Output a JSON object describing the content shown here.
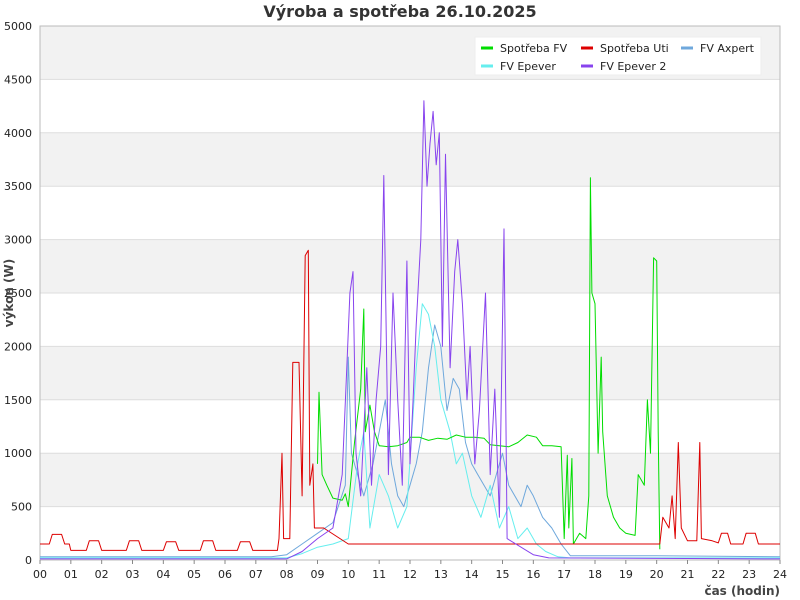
{
  "chart_data": {
    "type": "line",
    "title": "Výroba a spotřeba 26.10.2025",
    "xlabel": "čas (hodin)",
    "ylabel": "výkon (W)",
    "xlim": [
      0,
      24
    ],
    "ylim": [
      0,
      5000
    ],
    "x_ticks": [
      "00",
      "01",
      "02",
      "03",
      "04",
      "05",
      "06",
      "07",
      "08",
      "09",
      "10",
      "11",
      "12",
      "13",
      "14",
      "15",
      "16",
      "17",
      "18",
      "19",
      "20",
      "21",
      "22",
      "23",
      "24"
    ],
    "y_ticks": [
      0,
      500,
      1000,
      1500,
      2000,
      2500,
      3000,
      3500,
      4000,
      4500,
      5000
    ],
    "grid": true,
    "legend_position": "top-right",
    "colors": {
      "background": "#ffffff",
      "band": "#f2f2f2",
      "gridline": "#dddddd"
    },
    "series": [
      {
        "name": "Spotřeba FV",
        "color": "#00dd00",
        "points": [
          [
            9.0,
            900
          ],
          [
            9.05,
            1570
          ],
          [
            9.15,
            800
          ],
          [
            9.3,
            700
          ],
          [
            9.5,
            580
          ],
          [
            9.8,
            560
          ],
          [
            9.9,
            620
          ],
          [
            10.0,
            500
          ],
          [
            10.2,
            1100
          ],
          [
            10.4,
            1600
          ],
          [
            10.5,
            2350
          ],
          [
            10.55,
            1200
          ],
          [
            10.7,
            1450
          ],
          [
            10.85,
            1200
          ],
          [
            11.0,
            1070
          ],
          [
            11.3,
            1060
          ],
          [
            11.6,
            1070
          ],
          [
            11.9,
            1100
          ],
          [
            12.0,
            1150
          ],
          [
            12.3,
            1150
          ],
          [
            12.6,
            1120
          ],
          [
            12.9,
            1140
          ],
          [
            13.2,
            1130
          ],
          [
            13.5,
            1170
          ],
          [
            13.8,
            1150
          ],
          [
            14.1,
            1150
          ],
          [
            14.4,
            1140
          ],
          [
            14.6,
            1080
          ],
          [
            14.9,
            1070
          ],
          [
            15.2,
            1060
          ],
          [
            15.5,
            1100
          ],
          [
            15.8,
            1170
          ],
          [
            16.1,
            1150
          ],
          [
            16.3,
            1070
          ],
          [
            16.6,
            1070
          ],
          [
            16.9,
            1060
          ],
          [
            17.0,
            200
          ],
          [
            17.1,
            980
          ],
          [
            17.15,
            300
          ],
          [
            17.25,
            950
          ],
          [
            17.3,
            150
          ],
          [
            17.5,
            250
          ],
          [
            17.7,
            200
          ],
          [
            17.8,
            600
          ],
          [
            17.85,
            3580
          ],
          [
            17.9,
            2500
          ],
          [
            18.0,
            2400
          ],
          [
            18.1,
            1000
          ],
          [
            18.2,
            1900
          ],
          [
            18.25,
            1200
          ],
          [
            18.4,
            600
          ],
          [
            18.6,
            400
          ],
          [
            18.8,
            300
          ],
          [
            19.0,
            250
          ],
          [
            19.3,
            230
          ],
          [
            19.4,
            800
          ],
          [
            19.6,
            700
          ],
          [
            19.7,
            1500
          ],
          [
            19.8,
            1000
          ],
          [
            19.9,
            2830
          ],
          [
            20.0,
            2800
          ],
          [
            20.05,
            1200
          ],
          [
            20.1,
            100
          ]
        ]
      },
      {
        "name": "Spotřeba Uti",
        "color": "#dd0000",
        "points": [
          [
            0.0,
            150
          ],
          [
            0.3,
            150
          ],
          [
            0.4,
            240
          ],
          [
            0.7,
            240
          ],
          [
            0.8,
            150
          ],
          [
            0.95,
            150
          ],
          [
            1.0,
            90
          ],
          [
            1.5,
            90
          ],
          [
            1.6,
            180
          ],
          [
            1.9,
            180
          ],
          [
            2.0,
            90
          ],
          [
            2.8,
            90
          ],
          [
            2.9,
            180
          ],
          [
            3.2,
            180
          ],
          [
            3.3,
            90
          ],
          [
            4.0,
            90
          ],
          [
            4.1,
            170
          ],
          [
            4.4,
            170
          ],
          [
            4.5,
            90
          ],
          [
            5.2,
            90
          ],
          [
            5.3,
            180
          ],
          [
            5.6,
            180
          ],
          [
            5.7,
            90
          ],
          [
            6.4,
            90
          ],
          [
            6.5,
            170
          ],
          [
            6.8,
            170
          ],
          [
            6.9,
            90
          ],
          [
            7.7,
            90
          ],
          [
            7.75,
            200
          ],
          [
            7.85,
            1000
          ],
          [
            7.9,
            200
          ],
          [
            8.1,
            200
          ],
          [
            8.2,
            1850
          ],
          [
            8.4,
            1850
          ],
          [
            8.5,
            600
          ],
          [
            8.6,
            2850
          ],
          [
            8.7,
            2900
          ],
          [
            8.75,
            700
          ],
          [
            8.85,
            900
          ],
          [
            8.9,
            300
          ],
          [
            9.2,
            300
          ],
          [
            10.0,
            150
          ],
          [
            20.1,
            150
          ],
          [
            20.2,
            400
          ],
          [
            20.4,
            300
          ],
          [
            20.5,
            600
          ],
          [
            20.6,
            200
          ],
          [
            20.7,
            1100
          ],
          [
            20.8,
            300
          ],
          [
            21.0,
            180
          ],
          [
            21.3,
            180
          ],
          [
            21.4,
            1100
          ],
          [
            21.45,
            200
          ],
          [
            21.8,
            180
          ],
          [
            22.0,
            160
          ],
          [
            22.1,
            250
          ],
          [
            22.3,
            250
          ],
          [
            22.4,
            150
          ],
          [
            22.8,
            150
          ],
          [
            22.9,
            250
          ],
          [
            23.2,
            250
          ],
          [
            23.3,
            150
          ],
          [
            23.7,
            150
          ],
          [
            23.75,
            150
          ],
          [
            24.0,
            150
          ]
        ]
      },
      {
        "name": "FV Axpert",
        "color": "#6fa8dc",
        "points": [
          [
            0,
            30
          ],
          [
            7.5,
            30
          ],
          [
            8.0,
            50
          ],
          [
            8.5,
            150
          ],
          [
            9.0,
            250
          ],
          [
            9.5,
            350
          ],
          [
            9.9,
            700
          ],
          [
            10.0,
            1900
          ],
          [
            10.1,
            1000
          ],
          [
            10.3,
            800
          ],
          [
            10.5,
            600
          ],
          [
            10.8,
            900
          ],
          [
            11.0,
            1200
          ],
          [
            11.2,
            1500
          ],
          [
            11.4,
            900
          ],
          [
            11.6,
            600
          ],
          [
            11.8,
            500
          ],
          [
            12.0,
            700
          ],
          [
            12.2,
            900
          ],
          [
            12.4,
            1200
          ],
          [
            12.6,
            1800
          ],
          [
            12.8,
            2200
          ],
          [
            13.0,
            2000
          ],
          [
            13.2,
            1400
          ],
          [
            13.4,
            1700
          ],
          [
            13.6,
            1600
          ],
          [
            13.8,
            1100
          ],
          [
            14.0,
            900
          ],
          [
            14.2,
            800
          ],
          [
            14.4,
            700
          ],
          [
            14.6,
            600
          ],
          [
            14.8,
            800
          ],
          [
            15.0,
            1000
          ],
          [
            15.2,
            700
          ],
          [
            15.4,
            600
          ],
          [
            15.6,
            500
          ],
          [
            15.8,
            700
          ],
          [
            16.0,
            600
          ],
          [
            16.3,
            400
          ],
          [
            16.6,
            300
          ],
          [
            16.9,
            150
          ],
          [
            17.2,
            40
          ],
          [
            20.0,
            40
          ],
          [
            24.0,
            30
          ]
        ]
      },
      {
        "name": "FV Epever",
        "color": "#66eeee",
        "points": [
          [
            0,
            20
          ],
          [
            8.0,
            20
          ],
          [
            8.5,
            60
          ],
          [
            9.0,
            120
          ],
          [
            9.5,
            150
          ],
          [
            10.0,
            200
          ],
          [
            10.3,
            900
          ],
          [
            10.5,
            1200
          ],
          [
            10.7,
            300
          ],
          [
            11.0,
            800
          ],
          [
            11.3,
            600
          ],
          [
            11.6,
            300
          ],
          [
            11.9,
            500
          ],
          [
            12.2,
            1800
          ],
          [
            12.4,
            2400
          ],
          [
            12.6,
            2300
          ],
          [
            12.8,
            2000
          ],
          [
            13.0,
            1500
          ],
          [
            13.3,
            1200
          ],
          [
            13.5,
            900
          ],
          [
            13.7,
            1000
          ],
          [
            14.0,
            600
          ],
          [
            14.3,
            400
          ],
          [
            14.6,
            700
          ],
          [
            14.9,
            300
          ],
          [
            15.2,
            500
          ],
          [
            15.5,
            200
          ],
          [
            15.8,
            300
          ],
          [
            16.1,
            150
          ],
          [
            16.4,
            80
          ],
          [
            16.8,
            30
          ],
          [
            17.2,
            20
          ],
          [
            24.0,
            20
          ]
        ]
      },
      {
        "name": "FV Epever 2",
        "color": "#8844ee",
        "points": [
          [
            0,
            10
          ],
          [
            8.0,
            10
          ],
          [
            8.5,
            80
          ],
          [
            9.0,
            200
          ],
          [
            9.5,
            300
          ],
          [
            9.8,
            800
          ],
          [
            9.95,
            1800
          ],
          [
            10.05,
            2500
          ],
          [
            10.15,
            2700
          ],
          [
            10.25,
            1000
          ],
          [
            10.4,
            600
          ],
          [
            10.6,
            1800
          ],
          [
            10.75,
            700
          ],
          [
            10.9,
            1500
          ],
          [
            11.05,
            2000
          ],
          [
            11.15,
            3600
          ],
          [
            11.3,
            800
          ],
          [
            11.45,
            2500
          ],
          [
            11.6,
            1500
          ],
          [
            11.75,
            700
          ],
          [
            11.9,
            2800
          ],
          [
            12.0,
            900
          ],
          [
            12.1,
            1500
          ],
          [
            12.2,
            2200
          ],
          [
            12.35,
            3000
          ],
          [
            12.45,
            4300
          ],
          [
            12.55,
            3500
          ],
          [
            12.65,
            3900
          ],
          [
            12.75,
            4200
          ],
          [
            12.85,
            3700
          ],
          [
            12.95,
            4000
          ],
          [
            13.05,
            2000
          ],
          [
            13.15,
            3800
          ],
          [
            13.3,
            1800
          ],
          [
            13.45,
            2700
          ],
          [
            13.55,
            3000
          ],
          [
            13.7,
            2400
          ],
          [
            13.85,
            1500
          ],
          [
            13.95,
            2000
          ],
          [
            14.1,
            900
          ],
          [
            14.25,
            1400
          ],
          [
            14.45,
            2500
          ],
          [
            14.6,
            800
          ],
          [
            14.75,
            1600
          ],
          [
            14.9,
            400
          ],
          [
            15.05,
            3100
          ],
          [
            15.15,
            200
          ],
          [
            16.0,
            50
          ],
          [
            16.5,
            20
          ],
          [
            24.0,
            10
          ]
        ]
      }
    ]
  }
}
